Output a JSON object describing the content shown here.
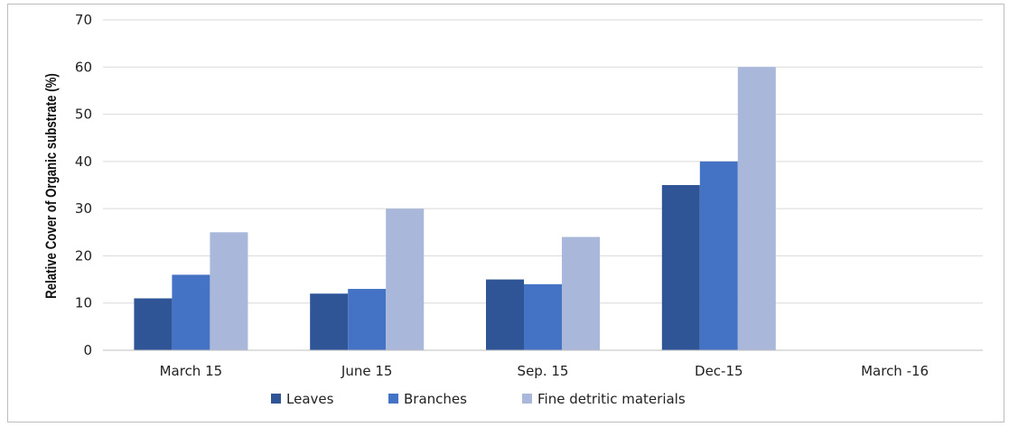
{
  "chart_data": {
    "type": "bar",
    "title": "",
    "xlabel": "",
    "ylabel": "Relative Cover of Organic  substrate  (%)",
    "ylim": [
      0,
      70
    ],
    "yticks": [
      0,
      10,
      20,
      30,
      40,
      50,
      60,
      70
    ],
    "grid": true,
    "legend_position": "bottom",
    "categories": [
      "March 15",
      "June 15",
      "Sep. 15",
      "Dec-15",
      "March -16"
    ],
    "series": [
      {
        "name": "Leaves",
        "color": "#2f5597",
        "values": [
          11,
          12,
          15,
          35,
          null
        ]
      },
      {
        "name": "Branches",
        "color": "#4472c4",
        "values": [
          16,
          13,
          14,
          40,
          null
        ]
      },
      {
        "name": "Fine detritic materials",
        "color": "#a9b7da",
        "values": [
          25,
          30,
          24,
          60,
          null
        ]
      }
    ]
  }
}
